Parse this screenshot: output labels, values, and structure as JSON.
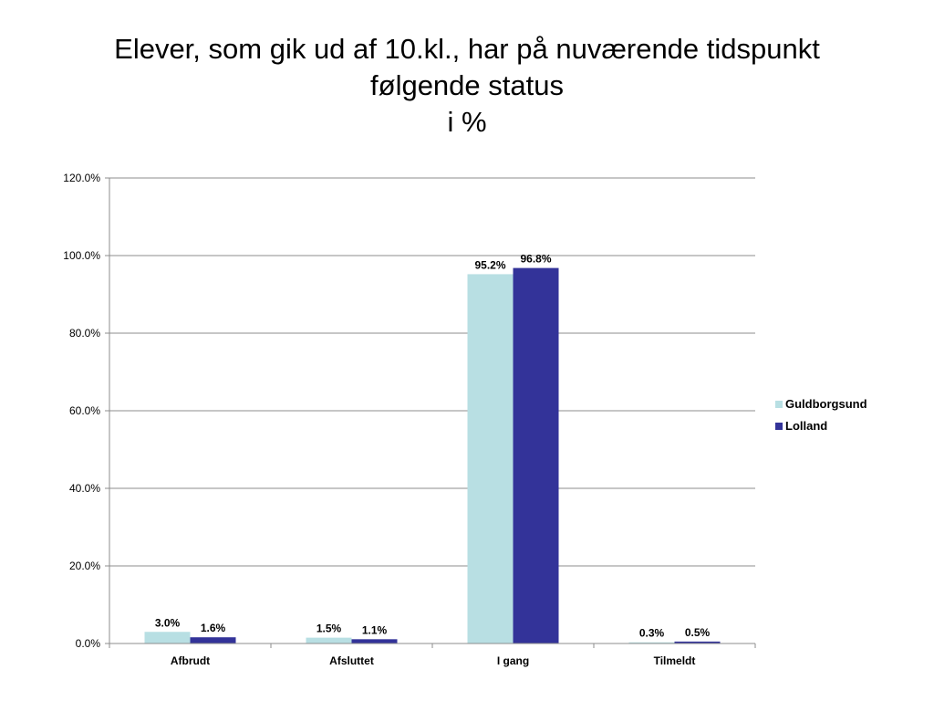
{
  "chart_data": {
    "type": "bar",
    "title_lines": [
      "Elever, som gik ud af 10.kl., har på nuværende tidspunkt",
      "følgende status",
      "i %"
    ],
    "xlabel": "",
    "ylabel": "",
    "categories": [
      "Afbrudt",
      "Afsluttet",
      "I gang",
      "Tilmeldt"
    ],
    "series": [
      {
        "name": "Guldborgsund",
        "values": [
          3.0,
          1.5,
          95.2,
          0.3
        ],
        "labels": [
          "3.0%",
          "1.5%",
          "95.2%",
          "0.3%"
        ],
        "color": "#B8DFE3"
      },
      {
        "name": "Lolland",
        "values": [
          1.6,
          1.1,
          96.8,
          0.5
        ],
        "labels": [
          "1.6%",
          "1.1%",
          "96.8%",
          "0.5%"
        ],
        "color": "#333399"
      }
    ],
    "ylim": [
      0,
      120
    ],
    "yticks": [
      0,
      20,
      40,
      60,
      80,
      100,
      120
    ],
    "ytick_labels": [
      "0.0%",
      "20.0%",
      "40.0%",
      "60.0%",
      "80.0%",
      "100.0%",
      "120.0%"
    ],
    "grid": true,
    "legend_position": "right"
  }
}
